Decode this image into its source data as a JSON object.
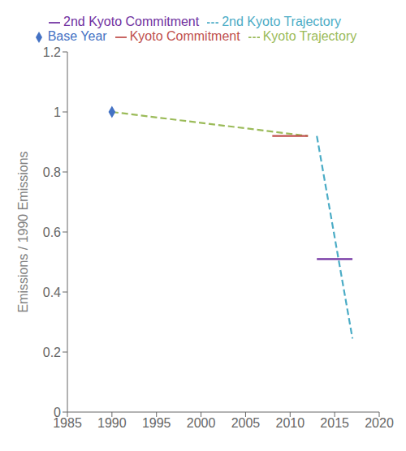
{
  "chart_data": {
    "type": "line",
    "ylabel": "Emissions / 1990 Emissions",
    "xlim": [
      1985,
      2020
    ],
    "ylim": [
      0,
      1.2
    ],
    "xticks": [
      1985,
      1990,
      1995,
      2000,
      2005,
      2010,
      2015,
      2020
    ],
    "yticks": [
      0,
      0.2,
      0.4,
      0.6,
      0.8,
      1,
      1.2
    ],
    "grid": false,
    "legend": "top",
    "series": [
      {
        "name": "Kyoto Trajectory",
        "type": "line",
        "color": "#9BBB59",
        "line_style": "dashed",
        "x": [
          1990,
          2012
        ],
        "values": [
          1.0,
          0.92
        ]
      },
      {
        "name": "Kyoto Commitment",
        "type": "line",
        "color": "#C0504D",
        "line_style": "solid",
        "x": [
          2008,
          2012
        ],
        "values": [
          0.92,
          0.92
        ]
      },
      {
        "name": "2nd Kyoto Commitment",
        "type": "line",
        "color": "#7030A0",
        "line_style": "solid",
        "x": [
          2013,
          2017
        ],
        "values": [
          0.51,
          0.51
        ]
      },
      {
        "name": "2nd Kyoto Trajectory",
        "type": "line",
        "color": "#4BACC6",
        "line_style": "dashed",
        "x": [
          2013,
          2017
        ],
        "values": [
          0.92,
          0.245
        ]
      },
      {
        "name": "Base Year",
        "type": "scatter",
        "color": "#4472C4",
        "marker": "diamond",
        "x": [
          1990
        ],
        "values": [
          1.0
        ]
      }
    ]
  }
}
